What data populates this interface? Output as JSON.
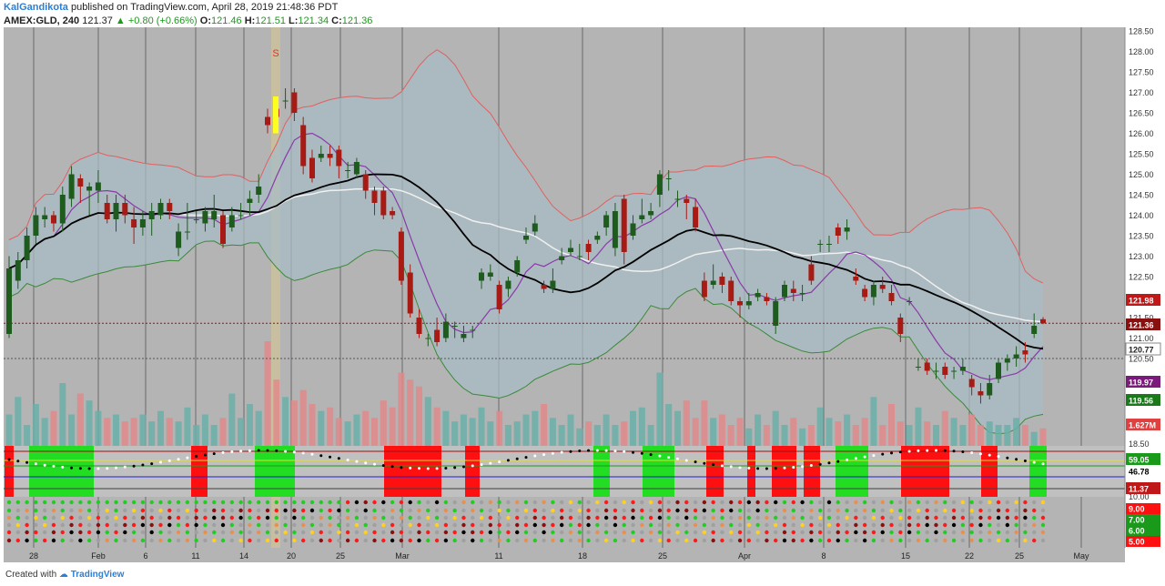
{
  "header": {
    "author": "KalGandikota",
    "published": "published on TradingView.com, April 28, 2019 21:48:36 PDT",
    "symbol": "AMEX:GLD, 240",
    "last": "121.37",
    "change": "▲ +0.80 (+0.66%)",
    "o_label": "O:",
    "o_value": "121.46",
    "h_label": "H:",
    "h_value": "121.51",
    "l_label": "L:",
    "l_value": "121.34",
    "c_label": "C:",
    "c_value": "121.36"
  },
  "footer": {
    "created_with": "Created with",
    "brand": "TradingView"
  },
  "colors": {
    "background": "#b4b4b4",
    "up": "#1e5c1e",
    "down": "#a81a14",
    "band_fill": "#a8bcc4",
    "upper_band": "#e06060",
    "lower_band": "#3a8a3a",
    "sma": "#000000",
    "ma2": "#f0f0f0",
    "purple": "#8a3aa8",
    "vol_up": "#6aafa8",
    "vol_down": "#e08a8a",
    "green_bar": "#22dd22",
    "red_bar": "#ff1010",
    "highlight": "#ffff20"
  },
  "chart_data": {
    "type": "candlestick",
    "symbol": "AMEX:GLD",
    "timeframe": "240",
    "price_axis": {
      "ticks": [
        "128.50",
        "128.00",
        "127.50",
        "127.00",
        "126.50",
        "126.00",
        "125.50",
        "125.00",
        "124.50",
        "124.00",
        "123.50",
        "123.00",
        "122.50",
        "122.00",
        "121.50",
        "121.00",
        "120.50"
      ],
      "range": [
        120.5,
        128.5
      ]
    },
    "price_labels": [
      {
        "text": "121.98",
        "value": 121.98,
        "color": "#c01818"
      },
      {
        "text": "121.36",
        "value": 121.36,
        "color": "#8a1010"
      },
      {
        "text": "120.77",
        "value": 120.77,
        "color": "#ffffff"
      },
      {
        "text": "119.97",
        "value": 119.97,
        "color": "#7a1a7a"
      },
      {
        "text": "119.56",
        "value": 119.56,
        "color": "#1a7a1a"
      },
      {
        "text": "1.627M",
        "value": 1.627,
        "color": "#e04040"
      }
    ],
    "osc_axis": {
      "ticks": [
        "18.50",
        "10.00"
      ],
      "labels": [
        {
          "text": "59.05",
          "color": "#1a9a1a"
        },
        {
          "text": "46.78",
          "color": "#000000"
        },
        {
          "text": "11.37",
          "color": "#c01818"
        }
      ]
    },
    "bottom_axis": {
      "labels": [
        {
          "text": "9.00",
          "color": "#ff1010"
        },
        {
          "text": "7.00",
          "color": "#1a9a1a"
        },
        {
          "text": "6.00",
          "color": "#1a9a1a"
        },
        {
          "text": "5.00",
          "color": "#ff1010"
        }
      ]
    },
    "x_labels": [
      "28",
      "Feb",
      "6",
      "11",
      "14",
      "20",
      "25",
      "Mar",
      "11",
      "18",
      "25",
      "Apr",
      "8",
      "15",
      "22",
      "25",
      "May"
    ],
    "marker": "S",
    "candles": [
      [
        121.1,
        122.7,
        123.0,
        121.0
      ],
      [
        122.4,
        122.9,
        123.1,
        122.2
      ],
      [
        122.9,
        123.5,
        123.7,
        122.7
      ],
      [
        123.5,
        124.0,
        124.2,
        123.3
      ],
      [
        123.9,
        124.0,
        124.2,
        123.7
      ],
      [
        124.0,
        123.8,
        124.1,
        123.6
      ],
      [
        123.8,
        124.5,
        124.7,
        123.6
      ],
      [
        124.4,
        125.0,
        125.2,
        124.2
      ],
      [
        124.9,
        124.7,
        125.0,
        124.3
      ],
      [
        124.6,
        124.7,
        124.8,
        124.0
      ],
      [
        124.6,
        124.8,
        125.1,
        124.3
      ],
      [
        124.3,
        123.9,
        124.5,
        123.8
      ],
      [
        123.9,
        124.3,
        124.5,
        123.6
      ],
      [
        124.3,
        124.0,
        124.5,
        123.8
      ],
      [
        123.9,
        123.7,
        124.2,
        123.3
      ],
      [
        123.7,
        123.9,
        124.1,
        123.5
      ],
      [
        123.9,
        124.1,
        124.3,
        123.5
      ],
      [
        124.0,
        124.3,
        124.4,
        123.9
      ],
      [
        124.3,
        124.1,
        124.4,
        123.9
      ],
      [
        123.2,
        123.6,
        123.8,
        123.0
      ],
      [
        123.6,
        123.6,
        124.3,
        123.4
      ],
      [
        123.9,
        123.9,
        124.1,
        123.8
      ],
      [
        123.8,
        124.1,
        124.2,
        123.6
      ],
      [
        123.9,
        124.1,
        124.5,
        123.7
      ],
      [
        124.0,
        123.3,
        124.1,
        123.2
      ],
      [
        123.7,
        124.0,
        124.2,
        123.6
      ],
      [
        124.0,
        124.0,
        124.3,
        123.9
      ],
      [
        124.3,
        124.4,
        124.6,
        124.0
      ],
      [
        124.5,
        124.7,
        125.0,
        124.3
      ],
      [
        126.4,
        126.2,
        126.6,
        126.0
      ],
      [
        126.6,
        126.4,
        126.9,
        126.2
      ],
      [
        126.8,
        126.8,
        127.1,
        126.6
      ],
      [
        127.0,
        126.5,
        127.1,
        126.3
      ],
      [
        126.2,
        125.2,
        126.4,
        125.0
      ],
      [
        125.4,
        124.9,
        125.6,
        124.8
      ],
      [
        125.4,
        125.5,
        125.7,
        125.3
      ],
      [
        125.5,
        125.4,
        125.7,
        125.2
      ],
      [
        125.6,
        125.2,
        125.7,
        124.9
      ],
      [
        125.1,
        125.1,
        125.3,
        124.9
      ],
      [
        125.0,
        125.3,
        125.4,
        124.9
      ],
      [
        125.0,
        124.6,
        125.1,
        124.4
      ],
      [
        124.6,
        124.3,
        124.7,
        124.0
      ],
      [
        124.6,
        124.0,
        124.7,
        123.9
      ],
      [
        124.1,
        124.0,
        124.2,
        123.9
      ],
      [
        123.6,
        122.4,
        123.7,
        122.3
      ],
      [
        122.6,
        121.6,
        122.8,
        121.5
      ],
      [
        121.5,
        121.1,
        121.7,
        121.0
      ],
      [
        121.0,
        121.0,
        121.1,
        120.8
      ],
      [
        121.2,
        120.9,
        121.5,
        120.8
      ],
      [
        121.0,
        121.4,
        121.6,
        120.9
      ],
      [
        121.3,
        121.3,
        121.4,
        121.0
      ],
      [
        121.0,
        121.1,
        121.3,
        120.9
      ],
      [
        121.2,
        121.2,
        121.3,
        121.0
      ],
      [
        122.4,
        122.6,
        122.7,
        122.2
      ],
      [
        122.5,
        122.6,
        122.8,
        122.4
      ],
      [
        122.3,
        121.7,
        122.4,
        121.6
      ],
      [
        122.2,
        122.4,
        122.5,
        122.0
      ],
      [
        122.6,
        122.9,
        123.0,
        122.5
      ],
      [
        123.4,
        123.5,
        123.7,
        123.3
      ],
      [
        123.6,
        123.8,
        124.0,
        123.5
      ],
      [
        122.3,
        122.2,
        122.4,
        122.1
      ],
      [
        122.2,
        122.4,
        122.7,
        122.1
      ],
      [
        122.9,
        123.0,
        123.2,
        122.8
      ],
      [
        123.1,
        123.2,
        123.4,
        123.0
      ],
      [
        123.0,
        123.0,
        123.3,
        122.9
      ],
      [
        123.3,
        123.1,
        123.4,
        122.9
      ],
      [
        123.4,
        123.5,
        123.6,
        123.3
      ],
      [
        123.7,
        124.0,
        124.1,
        123.5
      ],
      [
        123.2,
        124.1,
        124.3,
        123.0
      ],
      [
        124.4,
        123.1,
        124.5,
        122.8
      ],
      [
        123.5,
        123.8,
        124.0,
        123.4
      ],
      [
        123.9,
        124.0,
        124.4,
        123.8
      ],
      [
        124.0,
        124.1,
        124.3,
        123.9
      ],
      [
        124.5,
        125.0,
        125.1,
        124.2
      ],
      [
        124.9,
        124.9,
        125.1,
        124.6
      ],
      [
        124.4,
        124.4,
        124.6,
        124.2
      ],
      [
        124.4,
        124.3,
        124.5,
        123.9
      ],
      [
        124.2,
        123.7,
        124.4,
        123.6
      ],
      [
        122.4,
        122.0,
        122.6,
        121.9
      ],
      [
        122.3,
        122.4,
        122.8,
        122.2
      ],
      [
        122.5,
        122.3,
        122.6,
        122.1
      ],
      [
        122.4,
        121.9,
        122.5,
        121.8
      ],
      [
        121.9,
        121.8,
        122.0,
        121.5
      ],
      [
        121.8,
        121.9,
        122.1,
        121.7
      ],
      [
        122.0,
        122.1,
        122.2,
        121.9
      ],
      [
        122.0,
        121.9,
        122.1,
        121.8
      ],
      [
        121.3,
        121.9,
        122.0,
        121.1
      ],
      [
        122.0,
        122.3,
        122.4,
        121.9
      ],
      [
        122.2,
        122.1,
        122.4,
        121.9
      ],
      [
        122.1,
        122.1,
        122.3,
        121.9
      ],
      [
        122.8,
        122.4,
        123.0,
        122.3
      ],
      [
        123.3,
        123.3,
        123.4,
        123.1
      ],
      [
        123.3,
        123.3,
        123.5,
        123.1
      ],
      [
        123.7,
        123.5,
        123.8,
        123.3
      ],
      [
        123.6,
        123.7,
        123.9,
        123.4
      ],
      [
        122.5,
        122.4,
        122.7,
        122.3
      ],
      [
        122.2,
        122.0,
        122.3,
        121.9
      ],
      [
        122.0,
        122.3,
        122.4,
        121.8
      ],
      [
        122.3,
        122.2,
        122.5,
        122.1
      ],
      [
        122.1,
        121.9,
        122.3,
        121.8
      ],
      [
        121.5,
        121.1,
        121.6,
        120.9
      ],
      [
        121.9,
        121.9,
        122.0,
        121.8
      ],
      [
        120.3,
        120.3,
        120.5,
        120.2
      ],
      [
        120.4,
        120.2,
        120.5,
        120.1
      ],
      [
        120.2,
        120.2,
        120.4,
        120.0
      ],
      [
        120.3,
        120.1,
        120.4,
        120.0
      ],
      [
        120.2,
        120.2,
        120.3,
        120.0
      ],
      [
        120.2,
        120.3,
        120.5,
        120.1
      ],
      [
        120.0,
        119.8,
        120.1,
        119.6
      ],
      [
        119.7,
        119.6,
        119.9,
        119.4
      ],
      [
        119.6,
        119.9,
        120.1,
        119.5
      ],
      [
        120.0,
        120.4,
        120.5,
        119.9
      ],
      [
        120.4,
        120.5,
        120.6,
        120.2
      ],
      [
        120.5,
        120.6,
        120.8,
        120.3
      ],
      [
        120.7,
        120.6,
        120.9,
        120.4
      ],
      [
        121.1,
        121.3,
        121.6,
        121.0
      ],
      [
        121.46,
        121.36,
        121.51,
        121.34
      ]
    ],
    "series_note": "candles are [open, close, high, low]",
    "volume": [
      0.9,
      1.4,
      0.6,
      1.2,
      0.8,
      1.0,
      1.8,
      0.9,
      1.5,
      1.3,
      1.0,
      0.8,
      0.9,
      0.7,
      0.8,
      0.9,
      0.7,
      1.0,
      0.8,
      0.7,
      1.1,
      0.6,
      0.9,
      0.6,
      0.8,
      1.5,
      0.8,
      1.2,
      1.0,
      3.0,
      1.9,
      1.4,
      1.3,
      1.6,
      1.2,
      1.0,
      1.1,
      0.8,
      0.7,
      0.9,
      1.0,
      0.8,
      1.3,
      1.1,
      2.1,
      1.9,
      1.7,
      1.4,
      1.1,
      1.0,
      0.7,
      0.9,
      0.8,
      1.1,
      0.7,
      1.0,
      0.6,
      0.7,
      0.9,
      1.0,
      1.2,
      0.8,
      0.6,
      0.9,
      0.5,
      0.7,
      0.6,
      0.9,
      0.6,
      0.7,
      1.0,
      1.1,
      0.6,
      2.1,
      1.2,
      1.0,
      1.3,
      0.8,
      1.3,
      0.8,
      0.9,
      0.6,
      0.8,
      0.5,
      0.9,
      0.6,
      1.0,
      0.6,
      0.8,
      0.5,
      0.6,
      1.1,
      0.8,
      0.7,
      0.9,
      0.6,
      0.8,
      1.4,
      0.6,
      1.2,
      0.7,
      0.6,
      1.1,
      0.7,
      0.6,
      1.0,
      0.8,
      0.6,
      0.9,
      0.6,
      0.7,
      0.6,
      0.6,
      0.8,
      0.6,
      0.4,
      0.5
    ]
  }
}
